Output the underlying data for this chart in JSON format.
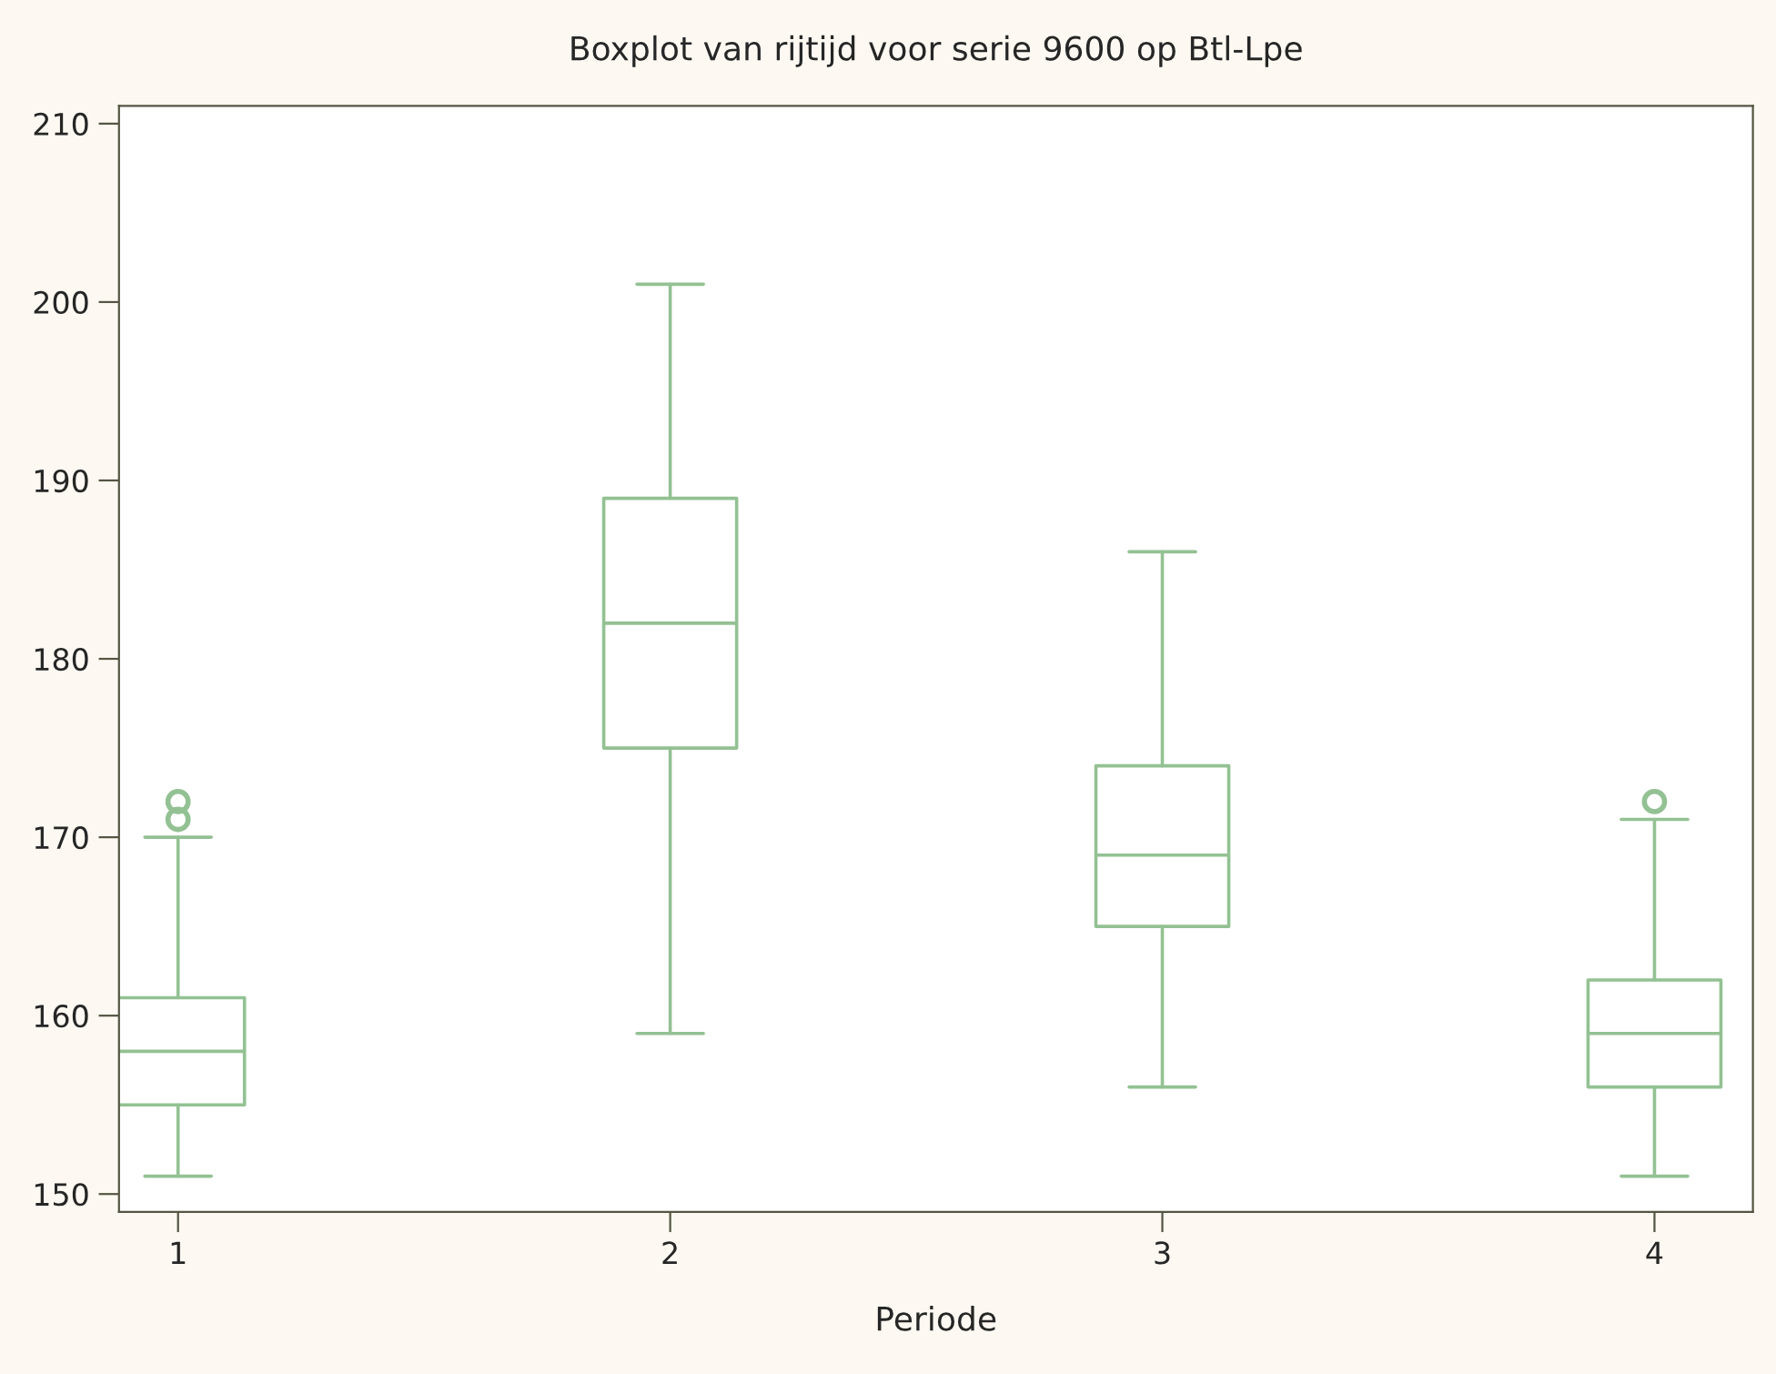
{
  "chart_data": {
    "type": "box",
    "title": "Boxplot van rijtijd voor serie 9600 op Btl-Lpe",
    "xlabel": "Periode",
    "categories": [
      "1",
      "2",
      "3",
      "4"
    ],
    "series": [
      {
        "color": "#93c193",
        "boxes": [
          {
            "low": 151,
            "q1": 155,
            "median": 158,
            "q3": 161,
            "high": 170,
            "outliers": [
              171,
              172
            ]
          },
          {
            "low": 159,
            "q1": 175,
            "median": 182,
            "q3": 189,
            "high": 201
          },
          {
            "low": 156,
            "q1": 165,
            "median": 169,
            "q3": 174,
            "high": 186
          },
          {
            "low": 151,
            "q1": 156,
            "median": 159,
            "q3": 162,
            "high": 171,
            "outliers": [
              172
            ]
          }
        ]
      }
    ],
    "ylim": [
      149,
      211
    ],
    "yticks": [
      150,
      160,
      170,
      180,
      190,
      200,
      210
    ],
    "grid": false,
    "legend": false
  }
}
